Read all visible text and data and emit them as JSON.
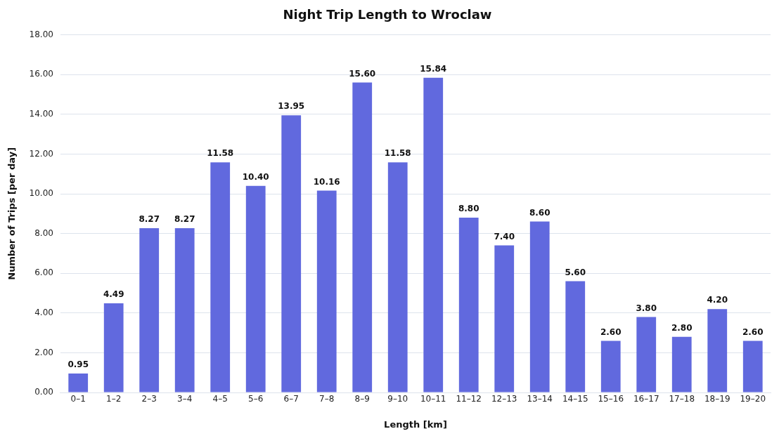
{
  "chart_data": {
    "type": "bar",
    "title": "Night Trip Length to Wroclaw",
    "xlabel": "Length [km]",
    "ylabel": "Number of Trips [per day]",
    "categories": [
      "0–1",
      "1–2",
      "2–3",
      "3–4",
      "4–5",
      "5–6",
      "6–7",
      "7–8",
      "8–9",
      "9–10",
      "10–11",
      "11–12",
      "12–13",
      "13–14",
      "14–15",
      "15–16",
      "16–17",
      "17–18",
      "18–19",
      "19–20"
    ],
    "values": [
      0.95,
      4.49,
      8.27,
      8.27,
      11.58,
      10.4,
      13.95,
      10.16,
      15.6,
      11.58,
      15.84,
      8.8,
      7.4,
      8.6,
      5.6,
      2.6,
      3.8,
      2.8,
      4.2,
      2.6
    ],
    "value_labels": [
      "0.95",
      "4.49",
      "8.27",
      "8.27",
      "11.58",
      "10.40",
      "13.95",
      "10.16",
      "15.60",
      "11.58",
      "15.84",
      "8.80",
      "7.40",
      "8.60",
      "5.60",
      "2.60",
      "3.80",
      "2.80",
      "4.20",
      "2.60"
    ],
    "color": "#6169de",
    "ylim": [
      0,
      18
    ],
    "yticks": [
      {
        "value": 0,
        "label": "0.00"
      },
      {
        "value": 2,
        "label": "2.00"
      },
      {
        "value": 4,
        "label": "4.00"
      },
      {
        "value": 6,
        "label": "6.00"
      },
      {
        "value": 8,
        "label": "8.00"
      },
      {
        "value": 10,
        "label": "10.00"
      },
      {
        "value": 12,
        "label": "12.00"
      },
      {
        "value": 14,
        "label": "14.00"
      },
      {
        "value": 16,
        "label": "16.00"
      },
      {
        "value": 18,
        "label": "18.00"
      }
    ],
    "grid": "y",
    "legend": false
  }
}
